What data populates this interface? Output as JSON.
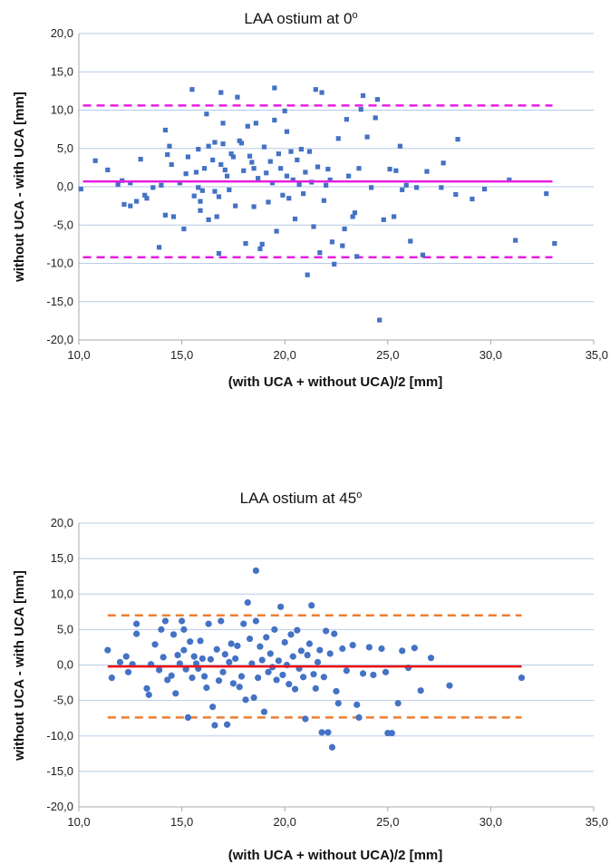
{
  "chart_data": [
    {
      "type": "scatter",
      "title": "LAA ostium at 0",
      "title_superscript": "o",
      "xlabel": "(with UCA + without UCA)/2 [mm]",
      "ylabel": "without UCA - with UCA [mm]",
      "xlim": [
        10,
        35
      ],
      "ylim": [
        -20,
        20
      ],
      "xticks": [
        "10,0",
        "15,0",
        "20,0",
        "25,0",
        "30,0",
        "35,0"
      ],
      "yticks": [
        "20,0",
        "15,0",
        "10,0",
        "5,0",
        "0,0",
        "-5,0",
        "-10,0",
        "-15,0",
        "-20,0"
      ],
      "grid": "horizontal",
      "marker": "square",
      "point_color": "#4472c4",
      "mean_line": {
        "value": 0.7,
        "x_range": [
          10.2,
          33.0
        ],
        "color": "#e81ce0",
        "style": "solid"
      },
      "limit_lines": [
        {
          "value": 10.6,
          "x_range": [
            10.2,
            33.0
          ],
          "color": "#e81ce0",
          "style": "dashed"
        },
        {
          "value": -9.2,
          "x_range": [
            10.2,
            33.0
          ],
          "color": "#e81ce0",
          "style": "dashed"
        }
      ],
      "points": [
        [
          10.1,
          -0.3
        ],
        [
          10.8,
          3.4
        ],
        [
          11.4,
          2.2
        ],
        [
          11.9,
          0.3
        ],
        [
          12.1,
          0.8
        ],
        [
          12.2,
          -2.3
        ],
        [
          12.5,
          0.5
        ],
        [
          12.5,
          -2.5
        ],
        [
          12.8,
          -1.9
        ],
        [
          13.0,
          3.6
        ],
        [
          13.2,
          -1.1
        ],
        [
          13.3,
          -1.5
        ],
        [
          13.6,
          -0.1
        ],
        [
          13.9,
          -7.9
        ],
        [
          14.0,
          0.2
        ],
        [
          14.2,
          -3.7
        ],
        [
          14.2,
          7.4
        ],
        [
          14.3,
          4.2
        ],
        [
          14.4,
          5.3
        ],
        [
          14.5,
          2.9
        ],
        [
          14.6,
          -3.9
        ],
        [
          14.9,
          0.5
        ],
        [
          15.1,
          -5.5
        ],
        [
          15.2,
          1.7
        ],
        [
          15.3,
          3.9
        ],
        [
          15.5,
          12.7
        ],
        [
          15.6,
          -1.2
        ],
        [
          15.7,
          1.9
        ],
        [
          15.8,
          4.9
        ],
        [
          15.8,
          -0.1
        ],
        [
          15.9,
          -1.9
        ],
        [
          15.9,
          -3.1
        ],
        [
          16.0,
          -0.5
        ],
        [
          16.1,
          2.4
        ],
        [
          16.2,
          9.5
        ],
        [
          16.3,
          5.3
        ],
        [
          16.3,
          -4.3
        ],
        [
          16.5,
          3.5
        ],
        [
          16.6,
          5.8
        ],
        [
          16.6,
          -0.6
        ],
        [
          16.7,
          -3.9
        ],
        [
          16.8,
          -1.3
        ],
        [
          16.8,
          -8.7
        ],
        [
          16.9,
          12.3
        ],
        [
          16.9,
          2.9
        ],
        [
          17.0,
          8.3
        ],
        [
          17.0,
          5.6
        ],
        [
          17.1,
          2.2
        ],
        [
          17.2,
          1.4
        ],
        [
          17.3,
          -0.4
        ],
        [
          17.4,
          4.3
        ],
        [
          17.5,
          3.9
        ],
        [
          17.6,
          -2.5
        ],
        [
          17.7,
          11.7
        ],
        [
          17.8,
          6.0
        ],
        [
          17.9,
          5.7
        ],
        [
          18.0,
          2.1
        ],
        [
          18.1,
          -7.4
        ],
        [
          18.2,
          7.9
        ],
        [
          18.3,
          4.0
        ],
        [
          18.4,
          3.2
        ],
        [
          18.5,
          2.4
        ],
        [
          18.5,
          -2.6
        ],
        [
          18.6,
          8.3
        ],
        [
          18.7,
          1.1
        ],
        [
          18.8,
          -8.1
        ],
        [
          18.9,
          -7.5
        ],
        [
          19.0,
          5.2
        ],
        [
          19.1,
          1.8
        ],
        [
          19.2,
          -2.0
        ],
        [
          19.3,
          3.3
        ],
        [
          19.4,
          0.5
        ],
        [
          19.5,
          12.9
        ],
        [
          19.5,
          8.7
        ],
        [
          19.6,
          -5.8
        ],
        [
          19.7,
          4.3
        ],
        [
          19.8,
          2.4
        ],
        [
          19.9,
          -1.1
        ],
        [
          20.0,
          9.9
        ],
        [
          20.1,
          7.2
        ],
        [
          20.1,
          1.4
        ],
        [
          20.2,
          -1.5
        ],
        [
          20.3,
          4.6
        ],
        [
          20.4,
          0.9
        ],
        [
          20.5,
          -4.2
        ],
        [
          20.6,
          3.5
        ],
        [
          20.7,
          0.3
        ],
        [
          20.8,
          4.9
        ],
        [
          20.9,
          -0.9
        ],
        [
          21.0,
          1.9
        ],
        [
          21.1,
          -11.5
        ],
        [
          21.2,
          4.6
        ],
        [
          21.3,
          0.6
        ],
        [
          21.4,
          -5.2
        ],
        [
          21.5,
          12.7
        ],
        [
          21.6,
          2.6
        ],
        [
          21.7,
          -8.6
        ],
        [
          21.8,
          12.3
        ],
        [
          21.9,
          -1.8
        ],
        [
          22.0,
          0.2
        ],
        [
          22.1,
          2.3
        ],
        [
          22.2,
          0.9
        ],
        [
          22.3,
          -7.2
        ],
        [
          22.4,
          -10.1
        ],
        [
          22.6,
          6.3
        ],
        [
          22.8,
          -7.7
        ],
        [
          22.9,
          -5.5
        ],
        [
          23.0,
          8.8
        ],
        [
          23.1,
          1.4
        ],
        [
          23.3,
          -3.9
        ],
        [
          23.4,
          -3.4
        ],
        [
          23.5,
          -9.1
        ],
        [
          23.6,
          2.4
        ],
        [
          23.7,
          10.1
        ],
        [
          23.8,
          11.9
        ],
        [
          24.0,
          6.5
        ],
        [
          24.2,
          -0.1
        ],
        [
          24.4,
          9.0
        ],
        [
          24.5,
          11.4
        ],
        [
          24.6,
          -17.4
        ],
        [
          24.8,
          -4.3
        ],
        [
          25.1,
          2.3
        ],
        [
          25.3,
          -3.9
        ],
        [
          25.4,
          2.1
        ],
        [
          25.6,
          5.3
        ],
        [
          25.7,
          -0.4
        ],
        [
          25.9,
          0.2
        ],
        [
          26.1,
          -7.1
        ],
        [
          26.4,
          -0.1
        ],
        [
          26.7,
          -8.9
        ],
        [
          26.9,
          2.0
        ],
        [
          27.7,
          3.1
        ],
        [
          27.6,
          -0.1
        ],
        [
          28.3,
          -1.0
        ],
        [
          28.4,
          6.2
        ],
        [
          29.1,
          -1.6
        ],
        [
          29.7,
          -0.3
        ],
        [
          30.9,
          0.9
        ],
        [
          31.2,
          -7.0
        ],
        [
          32.7,
          -0.9
        ],
        [
          33.1,
          -7.4
        ]
      ]
    },
    {
      "type": "scatter",
      "title": "LAA ostium at 45",
      "title_superscript": "o",
      "xlabel": "(with UCA + without UCA)/2 [mm]",
      "ylabel": "without UCA - with UCA [mm]",
      "xlim": [
        10,
        35
      ],
      "ylim": [
        -20,
        20
      ],
      "xticks": [
        "10,0",
        "15,0",
        "20,0",
        "25,0",
        "30,0",
        "35,0"
      ],
      "yticks": [
        "20,0",
        "15,0",
        "10,0",
        "5,0",
        "0,0",
        "-5,0",
        "-10,0",
        "-15,0",
        "-20,0"
      ],
      "grid": "horizontal",
      "marker": "circle",
      "point_color": "#4472c4",
      "mean_line": {
        "value": -0.2,
        "x_range": [
          11.4,
          31.5
        ],
        "color": "#ee1111",
        "style": "solid"
      },
      "limit_lines": [
        {
          "value": 7.0,
          "x_range": [
            11.4,
            31.5
          ],
          "color": "#ed7d31",
          "style": "dashed"
        },
        {
          "value": -7.4,
          "x_range": [
            11.4,
            31.5
          ],
          "color": "#ed7d31",
          "style": "dashed"
        }
      ],
      "points": [
        [
          11.4,
          2.1
        ],
        [
          11.6,
          -1.8
        ],
        [
          12.0,
          0.4
        ],
        [
          12.3,
          1.2
        ],
        [
          12.4,
          -1.0
        ],
        [
          12.6,
          0.1
        ],
        [
          12.8,
          5.8
        ],
        [
          12.8,
          4.4
        ],
        [
          13.3,
          -3.3
        ],
        [
          13.4,
          -4.2
        ],
        [
          13.5,
          0.1
        ],
        [
          13.7,
          2.9
        ],
        [
          13.9,
          -0.7
        ],
        [
          14.0,
          5.0
        ],
        [
          14.1,
          1.1
        ],
        [
          14.2,
          6.2
        ],
        [
          14.3,
          -2.1
        ],
        [
          14.5,
          -1.5
        ],
        [
          14.6,
          4.3
        ],
        [
          14.7,
          -4.0
        ],
        [
          14.8,
          1.4
        ],
        [
          14.9,
          0.2
        ],
        [
          15.0,
          6.2
        ],
        [
          15.1,
          5.0
        ],
        [
          15.1,
          2.1
        ],
        [
          15.2,
          -0.6
        ],
        [
          15.3,
          -7.4
        ],
        [
          15.4,
          3.3
        ],
        [
          15.5,
          -1.8
        ],
        [
          15.6,
          1.2
        ],
        [
          15.7,
          0.2
        ],
        [
          15.8,
          -0.5
        ],
        [
          15.9,
          3.4
        ],
        [
          16.0,
          0.9
        ],
        [
          16.1,
          -1.6
        ],
        [
          16.2,
          -3.2
        ],
        [
          16.3,
          5.8
        ],
        [
          16.4,
          0.8
        ],
        [
          16.5,
          -5.9
        ],
        [
          16.6,
          -8.5
        ],
        [
          16.7,
          2.2
        ],
        [
          16.8,
          -2.2
        ],
        [
          16.9,
          6.2
        ],
        [
          17.0,
          -1.0
        ],
        [
          17.1,
          1.5
        ],
        [
          17.2,
          -8.4
        ],
        [
          17.3,
          0.4
        ],
        [
          17.4,
          3.0
        ],
        [
          17.5,
          -2.6
        ],
        [
          17.6,
          0.9
        ],
        [
          17.7,
          2.7
        ],
        [
          17.8,
          -3.1
        ],
        [
          17.9,
          -1.6
        ],
        [
          18.0,
          5.8
        ],
        [
          18.1,
          -4.9
        ],
        [
          18.2,
          8.8
        ],
        [
          18.3,
          3.7
        ],
        [
          18.4,
          0.2
        ],
        [
          18.5,
          -4.6
        ],
        [
          18.6,
          13.3
        ],
        [
          18.6,
          6.2
        ],
        [
          18.7,
          -1.8
        ],
        [
          18.8,
          2.6
        ],
        [
          18.9,
          0.7
        ],
        [
          19.0,
          -6.6
        ],
        [
          19.1,
          3.9
        ],
        [
          19.2,
          -1.0
        ],
        [
          19.3,
          1.6
        ],
        [
          19.4,
          -0.3
        ],
        [
          19.5,
          5.0
        ],
        [
          19.6,
          -2.1
        ],
        [
          19.7,
          0.6
        ],
        [
          19.8,
          8.2
        ],
        [
          19.9,
          -1.4
        ],
        [
          20.0,
          3.2
        ],
        [
          20.1,
          0.0
        ],
        [
          20.2,
          -2.7
        ],
        [
          20.3,
          4.3
        ],
        [
          20.4,
          1.2
        ],
        [
          20.5,
          -3.4
        ],
        [
          20.6,
          4.9
        ],
        [
          20.7,
          -0.5
        ],
        [
          20.8,
          2.0
        ],
        [
          20.9,
          -1.7
        ],
        [
          21.0,
          -7.6
        ],
        [
          21.1,
          1.4
        ],
        [
          21.2,
          3.0
        ],
        [
          21.3,
          8.4
        ],
        [
          21.4,
          -1.3
        ],
        [
          21.5,
          -3.3
        ],
        [
          21.6,
          0.4
        ],
        [
          21.7,
          2.1
        ],
        [
          21.8,
          -9.5
        ],
        [
          21.9,
          -1.7
        ],
        [
          22.0,
          4.8
        ],
        [
          22.1,
          -9.5
        ],
        [
          22.2,
          1.6
        ],
        [
          22.3,
          -11.6
        ],
        [
          22.4,
          4.4
        ],
        [
          22.5,
          -3.7
        ],
        [
          22.6,
          -5.4
        ],
        [
          22.8,
          2.3
        ],
        [
          23.0,
          -0.8
        ],
        [
          23.3,
          2.8
        ],
        [
          23.5,
          -5.6
        ],
        [
          23.6,
          -7.4
        ],
        [
          23.8,
          -1.2
        ],
        [
          24.1,
          2.5
        ],
        [
          24.3,
          -1.4
        ],
        [
          24.7,
          2.3
        ],
        [
          24.9,
          -1.0
        ],
        [
          25.0,
          -9.6
        ],
        [
          25.2,
          -9.6
        ],
        [
          25.5,
          -5.4
        ],
        [
          25.7,
          2.0
        ],
        [
          26.0,
          -0.4
        ],
        [
          26.3,
          2.4
        ],
        [
          26.6,
          -3.6
        ],
        [
          27.1,
          1.0
        ],
        [
          28.0,
          -2.9
        ],
        [
          31.5,
          -1.8
        ]
      ]
    }
  ]
}
